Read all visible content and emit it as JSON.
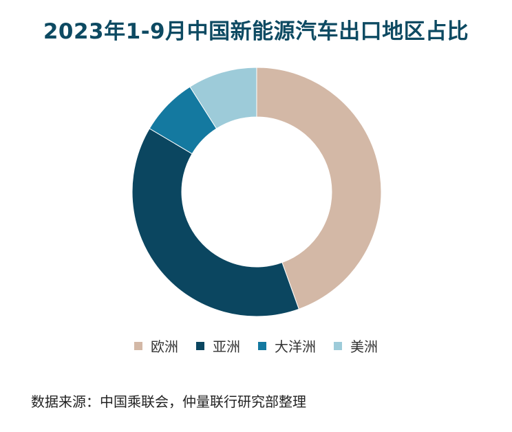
{
  "title": "2023年1-9月中国新能源汽车出口地区占比",
  "source": "数据来源：中国乘联会，仲量联行研究部整理",
  "chart_data": {
    "type": "pie",
    "donut": true,
    "title": "2023年1-9月中国新能源汽车出口地区占比",
    "categories": [
      "欧洲",
      "亚洲",
      "大洋洲",
      "美洲"
    ],
    "values": [
      44.5,
      39.0,
      7.5,
      9.0
    ],
    "colors": [
      "#d3b8a6",
      "#0b4660",
      "#1479a0",
      "#9dcbd9"
    ],
    "legend": "bottom"
  }
}
